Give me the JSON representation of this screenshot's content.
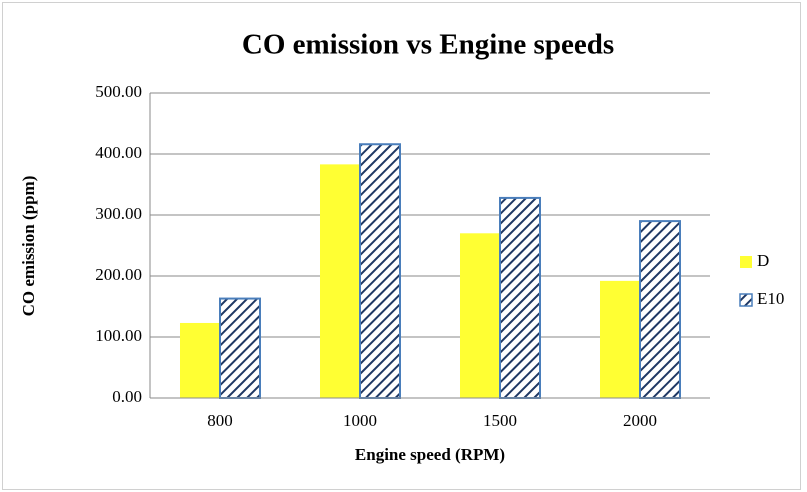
{
  "chart_data": {
    "type": "bar",
    "title": "CO emission vs Engine speeds",
    "x_label": "Engine speed (RPM)",
    "y_label": "CO emission (ppm)",
    "categories": [
      "800",
      "1000",
      "1500",
      "2000"
    ],
    "series": [
      {
        "name": "D",
        "color": "#ffff33",
        "values": [
          123,
          383,
          270,
          192
        ]
      },
      {
        "name": "E10",
        "color": "#1f3864",
        "values": [
          163,
          416,
          328,
          290
        ]
      }
    ],
    "ylim": [
      0,
      500
    ],
    "yticks": [
      {
        "value": 0,
        "label": "0.00"
      },
      {
        "value": 100,
        "label": "100.00"
      },
      {
        "value": 200,
        "label": "200.00"
      },
      {
        "value": 300,
        "label": "300.00"
      },
      {
        "value": 400,
        "label": "400.00"
      },
      {
        "value": 500,
        "label": "500.00"
      }
    ],
    "grid": true,
    "legend": "right"
  }
}
